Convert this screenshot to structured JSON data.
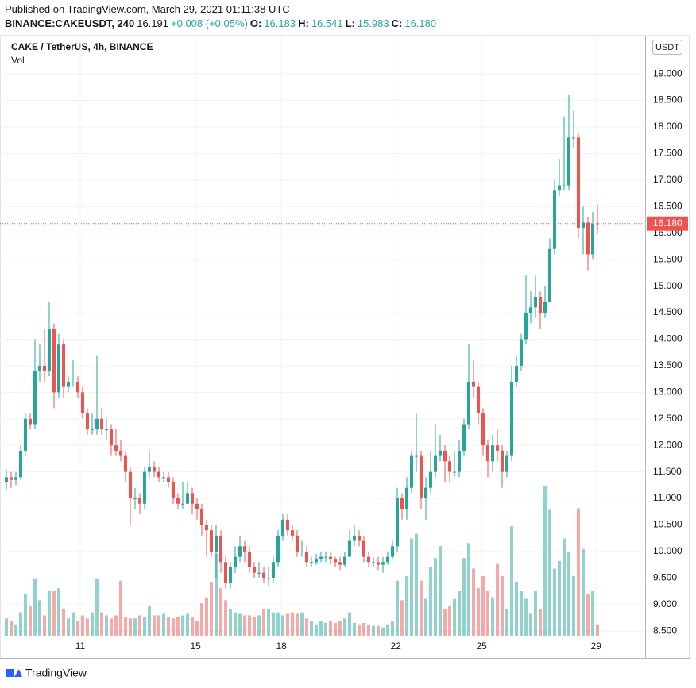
{
  "header": {
    "published": "Published on TradingView.com, March 29, 2021 01:11:38 UTC",
    "symbol": "BINANCE:CAKEUSDT, 240",
    "price": "16.191",
    "change": "+0.008 (+0.05%)",
    "o_label": "O:",
    "o": "16.183",
    "h_label": "H:",
    "h": "16.541",
    "l_label": "L:",
    "l": "15.983",
    "c_label": "C:",
    "c": "16.180"
  },
  "chart_data": {
    "type": "candlestick",
    "title": "CAKE / TetherUS, 4h, BINANCE",
    "volume_label": "Vol",
    "currency": "USDT",
    "up_color": "#26a69a",
    "down_color": "#ef5350",
    "candles": {
      "open": [
        11.3,
        11.4,
        11.35,
        11.4,
        11.9,
        12.5,
        12.4,
        13.4,
        13.5,
        13.4,
        14.2,
        13.0,
        13.9,
        13.1,
        13.2,
        13.2,
        13.0,
        12.6,
        12.3,
        12.3,
        12.5,
        12.3,
        12.3,
        12.0,
        11.9,
        11.8,
        11.5,
        11.0,
        11.0,
        10.9,
        11.5,
        11.6,
        11.5,
        11.4,
        11.4,
        11.3,
        11.0,
        10.9,
        10.9,
        11.1,
        10.9,
        10.8,
        10.5,
        10.4,
        10.0,
        10.3,
        9.8,
        9.4,
        9.7,
        9.9,
        10.1,
        10.0,
        9.7,
        9.6,
        9.6,
        9.5,
        9.5,
        9.8,
        10.3,
        10.6,
        10.4,
        10.3,
        10.0,
        10.0,
        9.8,
        9.8,
        9.85,
        9.9,
        9.9,
        9.85,
        9.8,
        9.75,
        9.9,
        10.2,
        10.3,
        10.2,
        9.9,
        9.8,
        9.8,
        9.75,
        9.8,
        9.9,
        10.1,
        11.0,
        10.8,
        11.2,
        11.8,
        11.8,
        11.0,
        11.2,
        11.5,
        11.8,
        11.9,
        11.7,
        11.5,
        11.5,
        11.9,
        12.4,
        13.2,
        13.1,
        12.6,
        12.0,
        11.7,
        12.0,
        11.9,
        11.5,
        11.8,
        13.2,
        13.5,
        14.0,
        14.5,
        14.6,
        14.8,
        14.5,
        14.7,
        15.7,
        16.8,
        16.9,
        16.9,
        17.8,
        17.8,
        16.1,
        16.2,
        15.6,
        16.183
      ],
      "high": [
        11.55,
        11.5,
        11.5,
        12.0,
        12.6,
        12.6,
        14.0,
        13.9,
        14.2,
        14.7,
        14.3,
        14.1,
        14.0,
        13.3,
        13.6,
        13.3,
        13.1,
        12.7,
        12.6,
        13.7,
        12.7,
        12.5,
        12.4,
        12.3,
        12.1,
        11.9,
        11.6,
        11.2,
        11.1,
        11.6,
        11.9,
        11.7,
        11.6,
        11.5,
        11.5,
        11.4,
        11.1,
        11.3,
        11.3,
        11.2,
        11.0,
        10.9,
        10.6,
        10.5,
        10.5,
        10.4,
        9.9,
        9.8,
        10.1,
        10.3,
        10.2,
        10.1,
        9.8,
        9.8,
        9.7,
        9.7,
        9.9,
        10.4,
        10.7,
        10.7,
        10.5,
        10.4,
        10.2,
        10.1,
        9.9,
        9.95,
        10.0,
        10.0,
        10.0,
        9.9,
        9.9,
        10.0,
        10.4,
        10.5,
        10.4,
        10.3,
        10.0,
        9.9,
        9.9,
        9.9,
        10.0,
        10.2,
        11.2,
        11.1,
        11.4,
        11.9,
        12.6,
        11.9,
        11.4,
        11.9,
        12.4,
        12.2,
        12.0,
        11.8,
        11.9,
        12.1,
        12.5,
        13.9,
        13.6,
        13.2,
        12.7,
        12.1,
        12.2,
        12.3,
        12.0,
        11.9,
        13.5,
        13.7,
        14.1,
        15.2,
        14.9,
        15.2,
        14.9,
        15.0,
        15.9,
        17.0,
        17.4,
        18.2,
        18.6,
        18.3,
        17.9,
        16.5,
        16.3,
        16.4,
        16.541
      ],
      "low": [
        11.15,
        11.2,
        11.25,
        11.35,
        11.8,
        12.3,
        12.3,
        13.2,
        13.2,
        13.3,
        12.7,
        12.9,
        12.9,
        13.0,
        13.1,
        12.9,
        12.5,
        12.2,
        12.2,
        12.2,
        12.2,
        12.1,
        11.8,
        11.8,
        11.7,
        11.3,
        10.5,
        10.8,
        10.7,
        10.8,
        11.4,
        11.4,
        11.3,
        11.3,
        11.2,
        10.9,
        10.8,
        10.8,
        10.9,
        10.7,
        10.6,
        10.3,
        9.9,
        9.9,
        9.5,
        9.6,
        9.3,
        9.3,
        9.6,
        9.8,
        9.8,
        9.6,
        9.5,
        9.5,
        9.4,
        9.35,
        9.4,
        9.7,
        10.2,
        10.3,
        10.2,
        9.9,
        9.9,
        9.7,
        9.7,
        9.75,
        9.8,
        9.8,
        9.75,
        9.7,
        9.65,
        9.7,
        9.9,
        10.1,
        10.1,
        9.8,
        9.7,
        9.7,
        9.65,
        9.6,
        9.75,
        9.85,
        10.0,
        10.6,
        10.6,
        11.1,
        11.5,
        10.8,
        10.6,
        11.1,
        11.4,
        11.7,
        11.3,
        11.3,
        11.4,
        11.4,
        11.8,
        12.3,
        12.9,
        12.4,
        11.8,
        11.4,
        11.5,
        11.7,
        11.2,
        11.4,
        11.7,
        13.1,
        13.4,
        13.9,
        14.3,
        14.4,
        14.2,
        14.4,
        14.7,
        15.6,
        16.7,
        16.8,
        16.8,
        17.6,
        15.9,
        15.6,
        15.3,
        15.5,
        15.983
      ],
      "close": [
        11.4,
        11.35,
        11.4,
        11.9,
        12.5,
        12.4,
        13.4,
        13.5,
        13.4,
        14.2,
        13.0,
        13.9,
        13.1,
        13.2,
        13.2,
        13.0,
        12.6,
        12.3,
        12.3,
        12.5,
        12.3,
        12.3,
        12.0,
        11.9,
        11.8,
        11.5,
        11.0,
        11.0,
        10.9,
        11.5,
        11.6,
        11.5,
        11.4,
        11.4,
        11.3,
        11.0,
        10.9,
        10.9,
        11.1,
        10.9,
        10.8,
        10.5,
        10.4,
        10.0,
        10.3,
        9.8,
        9.4,
        9.7,
        9.9,
        10.1,
        10.0,
        9.7,
        9.6,
        9.6,
        9.5,
        9.5,
        9.8,
        10.3,
        10.6,
        10.4,
        10.3,
        10.0,
        10.0,
        9.8,
        9.8,
        9.85,
        9.9,
        9.9,
        9.85,
        9.8,
        9.75,
        9.9,
        10.2,
        10.3,
        10.2,
        9.9,
        9.8,
        9.8,
        9.75,
        9.8,
        9.9,
        10.1,
        11.0,
        10.8,
        11.2,
        11.8,
        11.8,
        11.0,
        11.2,
        11.5,
        11.8,
        11.9,
        11.7,
        11.5,
        11.5,
        11.9,
        12.4,
        13.2,
        13.1,
        12.6,
        12.0,
        11.7,
        12.0,
        11.9,
        11.5,
        11.8,
        13.2,
        13.5,
        14.0,
        14.5,
        14.6,
        14.8,
        14.5,
        14.7,
        15.7,
        16.8,
        16.9,
        16.9,
        17.8,
        17.8,
        16.1,
        16.2,
        15.6,
        16.18,
        16.18
      ],
      "volume": [
        12,
        10,
        8,
        16,
        28,
        20,
        38,
        24,
        14,
        30,
        30,
        32,
        18,
        12,
        16,
        10,
        14,
        12,
        16,
        38,
        16,
        14,
        12,
        14,
        37,
        13,
        12,
        12,
        14,
        13,
        20,
        14,
        14,
        15,
        13,
        12,
        13,
        14,
        15,
        13,
        10,
        22,
        26,
        36,
        55,
        32,
        24,
        18,
        16,
        15,
        14,
        14,
        13,
        14,
        18,
        18,
        16,
        16,
        14,
        15,
        16,
        15,
        16,
        12,
        10,
        8,
        10,
        9,
        10,
        9,
        10,
        12,
        16,
        9,
        8,
        9,
        8,
        7,
        7,
        6,
        8,
        10,
        37,
        24,
        40,
        65,
        68,
        37,
        25,
        46,
        52,
        60,
        18,
        20,
        25,
        30,
        52,
        62,
        45,
        32,
        40,
        30,
        26,
        48,
        40,
        18,
        73,
        36,
        30,
        25,
        15,
        30,
        18,
        100,
        84,
        45,
        50,
        65,
        56,
        40,
        85,
        58,
        28,
        30,
        8
      ]
    },
    "ylim": [
      8.01,
      19.72
    ],
    "yticks": [
      {
        "value": 8.5,
        "label": "8.500"
      },
      {
        "value": 9,
        "label": "9.000"
      },
      {
        "value": 9.5,
        "label": "9.500"
      },
      {
        "value": 10,
        "label": "10.000"
      },
      {
        "value": 10.5,
        "label": "10.500"
      },
      {
        "value": 11,
        "label": "11.000"
      },
      {
        "value": 11.5,
        "label": "11.500"
      },
      {
        "value": 12,
        "label": "12.000"
      },
      {
        "value": 12.5,
        "label": "12.500"
      },
      {
        "value": 13,
        "label": "13.000"
      },
      {
        "value": 13.5,
        "label": "13.500"
      },
      {
        "value": 14,
        "label": "14.000"
      },
      {
        "value": 14.5,
        "label": "14.500"
      },
      {
        "value": 15,
        "label": "15.000"
      },
      {
        "value": 15.5,
        "label": "15.500"
      },
      {
        "value": 16,
        "label": "16.000"
      },
      {
        "value": 16.5,
        "label": "16.500"
      },
      {
        "value": 17,
        "label": "17.000"
      },
      {
        "value": 17.5,
        "label": "17.500"
      },
      {
        "value": 18,
        "label": "18.000"
      },
      {
        "value": 18.5,
        "label": "18.500"
      },
      {
        "value": 19,
        "label": "19.000"
      }
    ],
    "xlim": [
      -1.33,
      134
    ],
    "xticks": [
      {
        "value": 15.5,
        "label": "11"
      },
      {
        "value": 39.7,
        "label": "15"
      },
      {
        "value": 57.7,
        "label": "18"
      },
      {
        "value": 81.7,
        "label": "22"
      },
      {
        "value": 99.7,
        "label": "25"
      },
      {
        "value": 123.7,
        "label": "29"
      }
    ],
    "vlim": [
      0,
      100
    ],
    "grid": true,
    "last_price": {
      "value": 16.18,
      "label": "16.180"
    }
  },
  "footer": "TradingView"
}
